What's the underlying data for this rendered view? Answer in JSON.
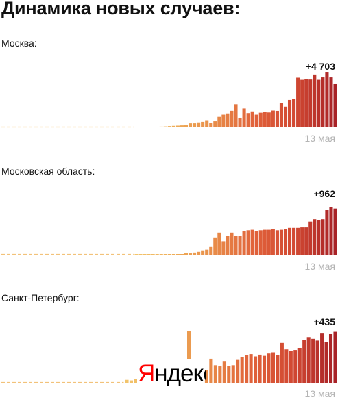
{
  "title": "Динамика новых случаев:",
  "watermark": {
    "first_letter": "Я",
    "rest": "ндекс",
    "first_letter_color": "#ff0000",
    "rest_color": "#000000"
  },
  "colors": {
    "baseline_dash": "#f2c27a",
    "date_label": "#b4b4b4",
    "scale": [
      "#f2c46b",
      "#eeab57",
      "#e88a48",
      "#e0613a",
      "#d14832",
      "#a82227"
    ]
  },
  "chart_data": [
    {
      "type": "bar",
      "title": "Москва:",
      "last_value_label": "+4 703",
      "last_date_label": "13 мая",
      "dashed_zero_count": 14,
      "ylim": [
        0,
        5950
      ],
      "values": [
        8,
        16,
        20,
        41,
        45,
        57,
        82,
        102,
        139,
        163,
        184,
        212,
        285,
        433,
        434,
        534,
        595,
        697,
        474,
        657,
        1124,
        1355,
        1489,
        1774,
        2474,
        1030,
        2026,
        1528,
        1708,
        1355,
        1568,
        1675,
        1595,
        1798,
        1766,
        2612,
        2220,
        2942,
        3083,
        5326,
        5100,
        5200,
        5132,
        5665,
        5100,
        5358,
        5948,
        5358,
        4703
      ]
    },
    {
      "type": "bar",
      "title": "Московская область:",
      "last_value_label": "+962",
      "last_date_label": "13 мая",
      "dashed_zero_count": 14,
      "ylim": [
        0,
        1100
      ],
      "values": [
        2,
        3,
        3,
        4,
        4,
        5,
        5,
        6,
        8,
        9,
        10,
        12,
        30,
        40,
        45,
        60,
        90,
        105,
        160,
        360,
        460,
        280,
        400,
        460,
        400,
        390,
        500,
        510,
        520,
        500,
        510,
        520,
        520,
        540,
        510,
        520,
        540,
        560,
        560,
        560,
        570,
        570,
        690,
        740,
        720,
        740,
        940,
        1000,
        962
      ]
    },
    {
      "type": "bar",
      "title": "Санкт-Петербург:",
      "last_value_label": "+435",
      "last_date_label": "13 мая",
      "dashed_zero_count": 16,
      "ylim": [
        0,
        450
      ],
      "values": [
        25,
        20,
        30,
        45,
        30,
        37,
        45,
        35,
        40,
        45,
        70,
        55,
        100,
        110,
        440,
        120,
        100,
        115,
        110,
        205,
        150,
        140,
        180,
        145,
        150,
        195,
        220,
        235,
        245,
        225,
        240,
        230,
        250,
        260,
        235,
        340,
        285,
        270,
        280,
        295,
        365,
        390,
        375,
        360,
        420,
        350,
        415,
        435
      ]
    }
  ]
}
